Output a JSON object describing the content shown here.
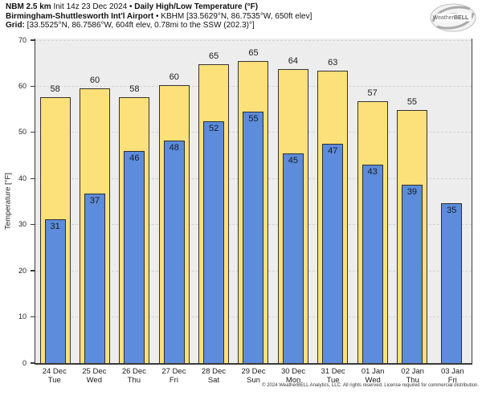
{
  "header": {
    "model": "NBM 2.5 km",
    "init": " Init 14z 23 Dec 2024 • ",
    "product": "Daily High/Low Temperature (°F)",
    "station_name": "Birmingham-Shuttlesworth Int'l Airport",
    "station_meta": " • KBHM [33.5629°N, 86.7535°W, 650ft elev]",
    "grid_label": "Grid:",
    "grid_meta": " [33.5525°N, 86.7586°W, 604ft elev, 0.78mi to the SSW (202.3)°]"
  },
  "logo": {
    "weather": "Weather",
    "bell": "BELL"
  },
  "chart_data": {
    "type": "bar",
    "title": "Daily High/Low Temperature (°F)",
    "ylabel": "Temperature [°F]",
    "ylim": [
      0,
      70
    ],
    "yticks": [
      0,
      10,
      20,
      30,
      40,
      50,
      60,
      70
    ],
    "grid": "horizontal-dashed",
    "legend_position": "none",
    "categories": [
      {
        "date": "24 Dec",
        "day": "Tue"
      },
      {
        "date": "25 Dec",
        "day": "Wed"
      },
      {
        "date": "26 Dec",
        "day": "Thu"
      },
      {
        "date": "27 Dec",
        "day": "Fri"
      },
      {
        "date": "28 Dec",
        "day": "Sat"
      },
      {
        "date": "29 Dec",
        "day": "Sun"
      },
      {
        "date": "30 Dec",
        "day": "Mon"
      },
      {
        "date": "31 Dec",
        "day": "Tue"
      },
      {
        "date": "01 Jan",
        "day": "Wed"
      },
      {
        "date": "02 Jan",
        "day": "Thu"
      },
      {
        "date": "03 Jan",
        "day": "Fri"
      }
    ],
    "series": [
      {
        "name": "Daily High",
        "color": "#fce07a",
        "labels": [
          58,
          60,
          58,
          60,
          65,
          65,
          64,
          63,
          57,
          55,
          null
        ],
        "values": [
          57.6,
          59.5,
          57.6,
          60.3,
          64.8,
          65.4,
          63.8,
          63.3,
          56.7,
          54.9,
          null
        ]
      },
      {
        "name": "Daily Low",
        "color": "#5c8cdb",
        "labels": [
          31,
          37,
          46,
          48,
          52,
          55,
          45,
          47,
          43,
          39,
          35
        ],
        "values": [
          31.2,
          36.7,
          45.9,
          48.3,
          52.4,
          54.5,
          45.4,
          47.5,
          43.0,
          38.7,
          34.7
        ]
      }
    ]
  },
  "footer": "© 2024 WeatherBELL Analytics, LLC. All rights reserved. License required for commercial distribution."
}
